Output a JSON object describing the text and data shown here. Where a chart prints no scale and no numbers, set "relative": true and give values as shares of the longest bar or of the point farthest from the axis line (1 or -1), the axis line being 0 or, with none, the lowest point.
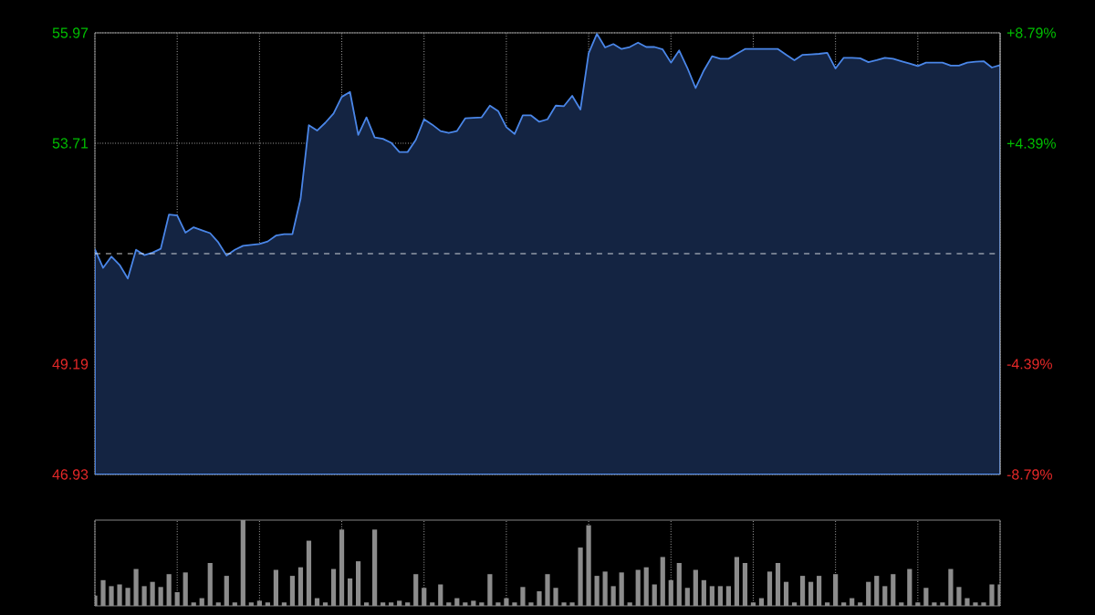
{
  "chart_data": [
    {
      "type": "area",
      "color": "#4a86e8",
      "categories": [
        null,
        null,
        null,
        null,
        null,
        null,
        null,
        null,
        null,
        null,
        null,
        null,
        null,
        null,
        null,
        null,
        null,
        null,
        null,
        null,
        null,
        null,
        null,
        null,
        null,
        null,
        null,
        null,
        null,
        null,
        null,
        null,
        null,
        null,
        null,
        null,
        null,
        null,
        null,
        null,
        null,
        null,
        null,
        null,
        null,
        null,
        null,
        null,
        null,
        null,
        null,
        null,
        null,
        null,
        null,
        null,
        null,
        null,
        null,
        null,
        null,
        null,
        null,
        null,
        null,
        null,
        null,
        null,
        null,
        null,
        null,
        null,
        null,
        null,
        null,
        null,
        null,
        null,
        null,
        null,
        null,
        null,
        null,
        null,
        null,
        null,
        null,
        null,
        null,
        null,
        null,
        null,
        null,
        null,
        null,
        null,
        null,
        null,
        null,
        null,
        null,
        null,
        null,
        null,
        null,
        null,
        null,
        null,
        null,
        null,
        null
      ],
      "values": [
        51.54,
        51.16,
        51.39,
        51.22,
        50.94,
        51.53,
        51.42,
        51.47,
        51.55,
        52.25,
        52.23,
        51.88,
        51.99,
        51.93,
        51.87,
        51.68,
        51.41,
        51.53,
        51.61,
        51.63,
        51.65,
        51.7,
        51.82,
        51.85,
        51.85,
        52.58,
        54.08,
        53.97,
        54.13,
        54.32,
        54.66,
        54.76,
        53.88,
        54.24,
        53.83,
        53.8,
        53.72,
        53.53,
        53.53,
        53.78,
        54.2,
        54.09,
        53.96,
        53.92,
        53.96,
        54.22,
        54.23,
        54.24,
        54.48,
        54.37,
        54.04,
        53.9,
        54.28,
        54.28,
        54.15,
        54.2,
        54.48,
        54.47,
        54.68,
        54.4,
        55.55,
        55.95,
        55.67,
        55.74,
        55.64,
        55.68,
        55.77,
        55.68,
        55.68,
        55.63,
        55.36,
        55.61,
        55.25,
        54.84,
        55.2,
        55.49,
        55.44,
        55.44,
        55.54,
        55.64,
        55.64,
        55.64,
        55.64,
        55.64,
        55.52,
        55.41,
        55.52,
        55.53,
        55.54,
        55.56,
        55.24,
        55.46,
        55.46,
        55.45,
        55.37,
        55.41,
        55.46,
        55.44,
        55.39,
        55.34,
        55.29,
        55.36,
        55.36,
        55.36,
        55.3,
        55.3,
        55.36,
        55.38,
        55.39,
        55.26,
        55.31
      ],
      "ylim": [
        46.93,
        55.97
      ],
      "yticks": [
        46.93,
        49.19,
        53.71,
        55.97
      ],
      "y2lim": [
        -8.79,
        8.79
      ],
      "y2ticks": [
        {
          "value": -8.79,
          "label": "-8.79%"
        },
        {
          "value": -4.39,
          "label": "-4.39%"
        },
        {
          "value": 4.39,
          "label": "+4.39%"
        },
        {
          "value": 8.79,
          "label": "+8.79%"
        }
      ],
      "ref_lines": [
        {
          "axis": "y",
          "value": 51.45,
          "line_style": "dashed"
        }
      ],
      "grid": true
    },
    {
      "type": "bar",
      "relative": true,
      "color": "#8c8c8c",
      "categories": [
        null,
        null,
        null,
        null,
        null,
        null,
        null,
        null,
        null,
        null,
        null,
        null,
        null,
        null,
        null,
        null,
        null,
        null,
        null,
        null,
        null,
        null,
        null,
        null,
        null,
        null,
        null,
        null,
        null,
        null,
        null,
        null,
        null,
        null,
        null,
        null,
        null,
        null,
        null,
        null,
        null,
        null,
        null,
        null,
        null,
        null,
        null,
        null,
        null,
        null,
        null,
        null,
        null,
        null,
        null,
        null,
        null,
        null,
        null,
        null,
        null,
        null,
        null,
        null,
        null,
        null,
        null,
        null,
        null,
        null,
        null,
        null,
        null,
        null,
        null,
        null,
        null,
        null,
        null,
        null,
        null,
        null,
        null,
        null,
        null,
        null,
        null,
        null,
        null,
        null,
        null,
        null,
        null,
        null,
        null,
        null,
        null,
        null,
        null,
        null,
        null,
        null,
        null,
        null,
        null,
        null,
        null,
        null,
        null,
        null,
        null
      ],
      "values": [
        0.12,
        0.3,
        0.23,
        0.25,
        0.21,
        0.43,
        0.23,
        0.28,
        0.22,
        0.37,
        0.16,
        0.39,
        0.04,
        0.09,
        0.5,
        0.04,
        0.35,
        0.04,
        1.0,
        0.04,
        0.06,
        0.04,
        0.42,
        0.04,
        0.35,
        0.45,
        0.76,
        0.09,
        0.04,
        0.43,
        0.89,
        0.32,
        0.52,
        0.04,
        0.89,
        0.04,
        0.04,
        0.06,
        0.04,
        0.37,
        0.21,
        0.04,
        0.25,
        0.04,
        0.09,
        0.04,
        0.06,
        0.04,
        0.37,
        0.04,
        0.09,
        0.04,
        0.22,
        0.04,
        0.17,
        0.37,
        0.21,
        0.04,
        0.04,
        0.68,
        0.94,
        0.35,
        0.4,
        0.23,
        0.39,
        0.04,
        0.42,
        0.45,
        0.25,
        0.57,
        0.3,
        0.5,
        0.21,
        0.42,
        0.3,
        0.23,
        0.23,
        0.23,
        0.57,
        0.5,
        0.04,
        0.09,
        0.4,
        0.5,
        0.28,
        0.04,
        0.35,
        0.28,
        0.35,
        0.04,
        0.37,
        0.04,
        0.09,
        0.04,
        0.28,
        0.35,
        0.23,
        0.37,
        0.04,
        0.43,
        0.04,
        0.21,
        0.04,
        0.04,
        0.43,
        0.22,
        0.09,
        0.04,
        0.04,
        0.25,
        0.25
      ],
      "grid": "x"
    }
  ]
}
